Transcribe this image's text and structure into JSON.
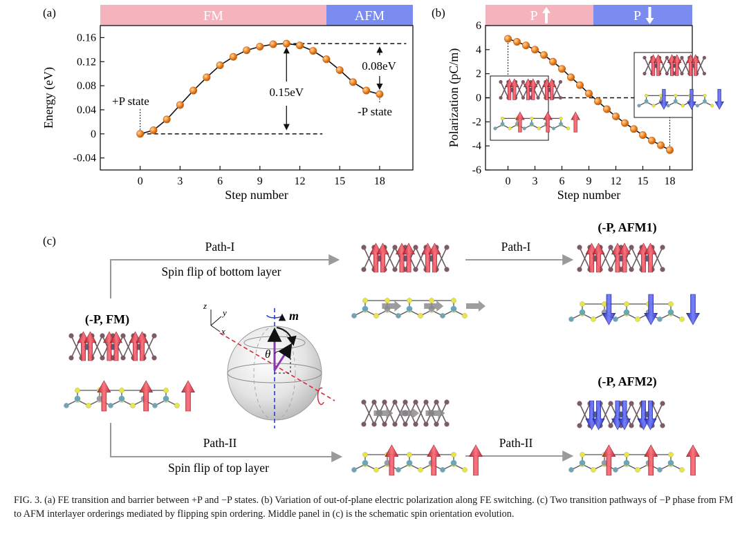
{
  "panel_labels": {
    "a": "(a)",
    "b": "(b)",
    "c": "(c)"
  },
  "colors": {
    "fm_band": "#f4b3bd",
    "afm_band": "#7b8cf0",
    "marker": "#f08c2c",
    "marker_edge": "#c8641a",
    "spin_up": "#e8414f",
    "spin_down": "#3a4af0",
    "arrow_gray": "#9a9a9a",
    "sulfur": "#e8e83a",
    "metal_dark": "#7c6a74",
    "metal_blue": "#6aa6b8"
  },
  "chart_data": [
    {
      "type": "line",
      "panel": "(a)",
      "xlabel": "Step number",
      "ylabel": "Energy (eV)",
      "xlim": [
        -3,
        20.5
      ],
      "ylim": [
        -0.06,
        0.18
      ],
      "xticks": [
        "0",
        "3",
        "6",
        "9",
        "12",
        "15",
        "18"
      ],
      "yticks": [
        "-0.04",
        "0",
        "0.04",
        "0.08",
        "0.12",
        "0.16"
      ],
      "bands": [
        {
          "label": "FM",
          "x_range": [
            -3,
            14
          ]
        },
        {
          "label": "AFM",
          "x_range": [
            14,
            20.5
          ]
        }
      ],
      "x": [
        0,
        1,
        2,
        3,
        4,
        5,
        6,
        7,
        8,
        9,
        10,
        11,
        12,
        13,
        14,
        15,
        16,
        17,
        18
      ],
      "y": [
        0.0,
        0.006,
        0.024,
        0.048,
        0.072,
        0.094,
        0.114,
        0.128,
        0.139,
        0.145,
        0.149,
        0.15,
        0.147,
        0.138,
        0.124,
        0.106,
        0.086,
        0.072,
        0.066
      ],
      "annotations": {
        "plus_state": "+P state",
        "minus_state": "-P state",
        "barrier": "0.15eV",
        "afm_gap": "0.08eV"
      }
    },
    {
      "type": "line",
      "panel": "(b)",
      "xlabel": "Step number",
      "ylabel": "Polarization (pC/m)",
      "xlim": [
        -2.5,
        20.5
      ],
      "ylim": [
        -6,
        6
      ],
      "xticks": [
        "0",
        "3",
        "6",
        "9",
        "12",
        "15",
        "18"
      ],
      "yticks": [
        "-6",
        "-4",
        "-2",
        "0",
        "2",
        "4",
        "6"
      ],
      "bands": [
        {
          "label": "P",
          "x_range": [
            -2.5,
            9.5
          ],
          "arrow": "up"
        },
        {
          "label": "P",
          "x_range": [
            9.5,
            20.5
          ],
          "arrow": "down"
        }
      ],
      "x": [
        0,
        1,
        2,
        3,
        4,
        5,
        6,
        7,
        8,
        9,
        10,
        11,
        12,
        13,
        14,
        15,
        16,
        17,
        18
      ],
      "y": [
        4.9,
        4.65,
        4.35,
        4.0,
        3.55,
        3.0,
        2.4,
        1.7,
        1.05,
        0.35,
        -0.3,
        -0.95,
        -1.55,
        -2.1,
        -2.6,
        -3.1,
        -3.55,
        -3.95,
        -4.35
      ]
    }
  ],
  "panel_c": {
    "top_path_label": "Path-I",
    "top_path_desc": "Spin flip of bottom layer",
    "top_right_path_label": "Path-I",
    "bottom_path_label": "Path-II",
    "bottom_path_desc": "Spin flip of top layer",
    "bottom_right_path_label": "Path-II",
    "state_fm": "(-P, FM)",
    "state_afm1": "(-P, AFM1)",
    "state_afm2": "(-P, AFM2)",
    "sphere_m": "m",
    "sphere_theta": "θ",
    "axes": {
      "z": "z",
      "y": "y",
      "x": "x"
    }
  },
  "caption": "FIG. 3. (a) FE transition and barrier between +P and −P states. (b) Variation of out-of-plane electric polarization along FE switching. (c) Two transition pathways of −P phase from FM to AFM interlayer orderings mediated by flipping spin ordering. Middle panel in (c) is the schematic spin orientation evolution."
}
